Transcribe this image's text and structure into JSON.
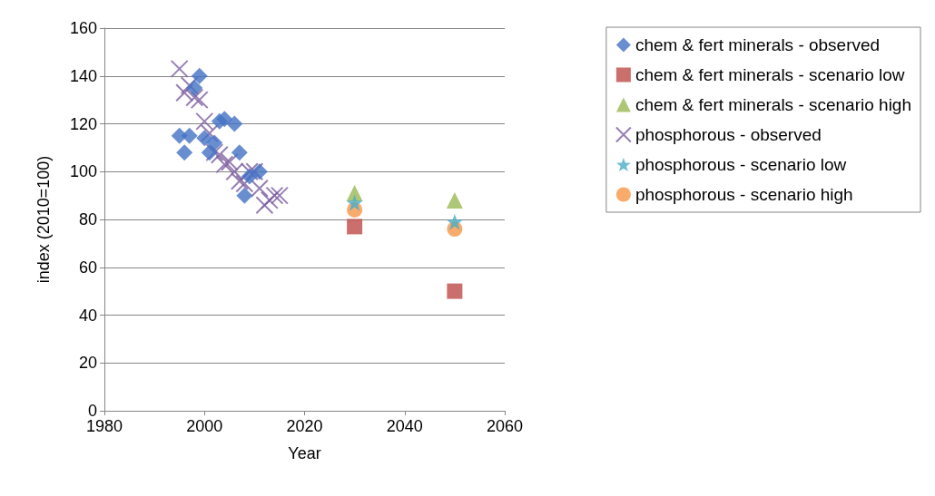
{
  "chart_data": {
    "type": "scatter",
    "xlabel": "Year",
    "ylabel": "index (2010=100)",
    "xlim": [
      1980,
      2060
    ],
    "xticks": [
      1980,
      2000,
      2020,
      2040,
      2060
    ],
    "ylim": [
      0,
      160
    ],
    "yticks": [
      0,
      20,
      40,
      60,
      80,
      100,
      120,
      140,
      160
    ],
    "grid": "y",
    "legend": "right",
    "series": [
      {
        "name": "chem & fert minerals - observed",
        "color": "#4472c4",
        "marker": "diamond",
        "x": [
          1995,
          1996,
          1997,
          1998,
          1999,
          2000,
          2001,
          2002,
          2003,
          2004,
          2006,
          2007,
          2008,
          2009,
          2011
        ],
        "values": [
          115,
          108,
          115,
          135,
          140,
          114,
          108,
          112,
          121,
          122,
          120,
          108,
          90,
          98,
          100
        ]
      },
      {
        "name": "chem & fert minerals - scenario low",
        "color": "#be4b48",
        "marker": "square",
        "x": [
          2030,
          2050
        ],
        "values": [
          77,
          50
        ]
      },
      {
        "name": "chem & fert minerals - scenario high",
        "color": "#98b954",
        "marker": "triangle",
        "x": [
          2030,
          2050
        ],
        "values": [
          91,
          88
        ]
      },
      {
        "name": "phosphorous - observed",
        "color": "#7d5fa0",
        "marker": "cross",
        "x": [
          1995,
          1996,
          1997,
          1998,
          1999,
          2000,
          2001,
          2002,
          2003,
          2004,
          2005,
          2006,
          2007,
          2008,
          2009,
          2010,
          2011,
          2012,
          2013,
          2014,
          2015
        ],
        "values": [
          143,
          133,
          136,
          131,
          130,
          121,
          116,
          108,
          107,
          103,
          104,
          100,
          96,
          95,
          100,
          100,
          93,
          86,
          88,
          90,
          90
        ]
      },
      {
        "name": "phosphorous - scenario low",
        "color": "#4bacc6",
        "marker": "star",
        "x": [
          2030,
          2050
        ],
        "values": [
          87,
          79
        ]
      },
      {
        "name": "phosphorous - scenario high",
        "color": "#f79646",
        "marker": "circle",
        "x": [
          2030,
          2050
        ],
        "values": [
          84,
          76
        ]
      }
    ]
  }
}
